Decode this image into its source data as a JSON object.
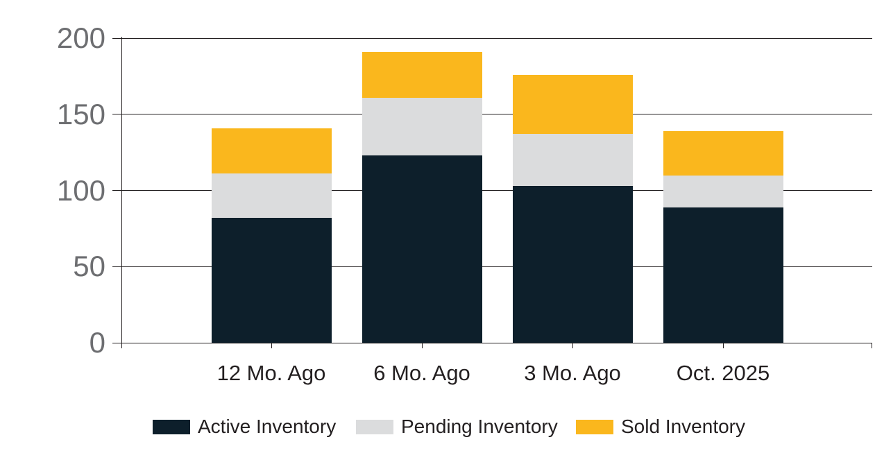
{
  "chart_data": {
    "type": "bar",
    "stacked": true,
    "title": "",
    "xlabel": "",
    "ylabel": "",
    "categories": [
      "12 Mo. Ago",
      "6 Mo. Ago",
      "3 Mo. Ago",
      "Oct. 2025"
    ],
    "series": [
      {
        "name": "Active Inventory",
        "color": "#0d1f2b",
        "values": [
          82,
          123,
          103,
          89
        ]
      },
      {
        "name": "Pending Inventory",
        "color": "#dbdcdd",
        "values": [
          29,
          38,
          34,
          21
        ]
      },
      {
        "name": "Sold Inventory",
        "color": "#fab71d",
        "values": [
          30,
          30,
          39,
          29
        ]
      }
    ],
    "stack_totals": [
      141,
      191,
      176,
      139
    ],
    "ylim": [
      0,
      200
    ],
    "yticks": [
      0,
      50,
      100,
      150,
      200
    ],
    "grid": true,
    "legend_position": "bottom"
  },
  "colors": {
    "background": "#ffffff",
    "axis": "#231f20",
    "gridline": "#231f20",
    "y_tick_label": "#6d6e71",
    "category_label": "#231f20",
    "legend_text": "#231f20"
  }
}
